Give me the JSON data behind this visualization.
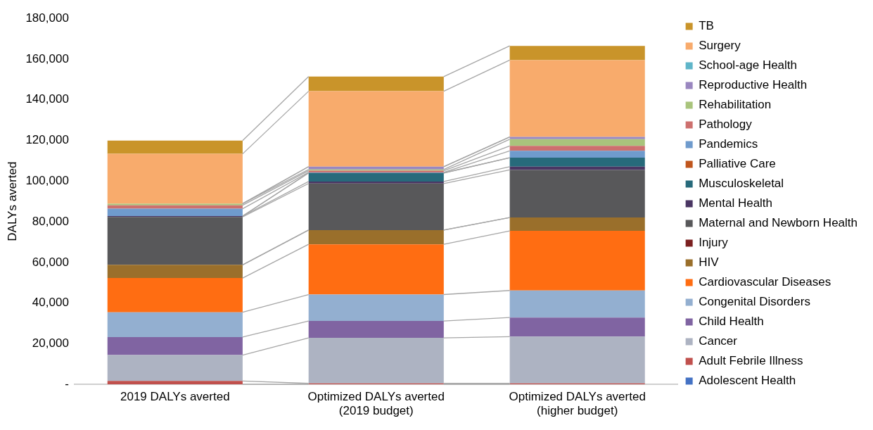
{
  "chart_data": {
    "type": "bar",
    "stacked": true,
    "ylabel": "DALYs averted",
    "categories": [
      "2019 DALYs averted",
      "Optimized DALYs averted\n(2019 budget)",
      "Optimized DALYs averted\n(higher budget)"
    ],
    "ylim": [
      0,
      180000
    ],
    "yticks": [
      {
        "value": 0,
        "label": "-"
      },
      {
        "value": 20000,
        "label": "20,000"
      },
      {
        "value": 40000,
        "label": "40,000"
      },
      {
        "value": 60000,
        "label": "60,000"
      },
      {
        "value": 80000,
        "label": "80,000"
      },
      {
        "value": 100000,
        "label": "100,000"
      },
      {
        "value": 120000,
        "label": "120,000"
      },
      {
        "value": 140000,
        "label": "140,000"
      },
      {
        "value": 160000,
        "label": "160,000"
      },
      {
        "value": 180000,
        "label": "180,000"
      }
    ],
    "grid": false,
    "legend": "right",
    "series": [
      {
        "name": "Adolescent Health",
        "color": "#4472c4",
        "values": [
          0,
          0,
          0
        ]
      },
      {
        "name": "Adult Febrile Illness",
        "color": "#c0504d",
        "values": [
          1700,
          500,
          500
        ]
      },
      {
        "name": "Cancer",
        "color": "#adb3c2",
        "values": [
          12700,
          22400,
          23000
        ]
      },
      {
        "name": "Child Health",
        "color": "#8064a2",
        "values": [
          8900,
          8300,
          9400
        ]
      },
      {
        "name": "Congenital Disorders",
        "color": "#93afd0",
        "values": [
          12200,
          13000,
          13300
        ]
      },
      {
        "name": "Cardiovascular Diseases",
        "color": "#ff6d12",
        "values": [
          16800,
          24700,
          29300
        ]
      },
      {
        "name": "HIV",
        "color": "#9a6f2b",
        "values": [
          6500,
          7000,
          6600
        ]
      },
      {
        "name": "Injury",
        "color": "#7b2020",
        "values": [
          0,
          0,
          0
        ]
      },
      {
        "name": "Maternal and Newborn Health",
        "color": "#58585a",
        "values": [
          23600,
          22900,
          23400
        ]
      },
      {
        "name": "Mental Health",
        "color": "#4a3663",
        "values": [
          400,
          1000,
          1600
        ]
      },
      {
        "name": "Musculoskeletal",
        "color": "#276a7b",
        "values": [
          0,
          4200,
          4400
        ]
      },
      {
        "name": "Palliative Care",
        "color": "#c0561d",
        "values": [
          0,
          0,
          0
        ]
      },
      {
        "name": "Pandemics",
        "color": "#6f9bcd",
        "values": [
          3600,
          300,
          3400
        ]
      },
      {
        "name": "Pathology",
        "color": "#cd706e",
        "values": [
          1700,
          800,
          2400
        ]
      },
      {
        "name": "Rehabilitation",
        "color": "#a9c47c",
        "values": [
          800,
          600,
          3300
        ]
      },
      {
        "name": "Reproductive Health",
        "color": "#9a87c0",
        "values": [
          0,
          1400,
          1100
        ]
      },
      {
        "name": "School-age Health",
        "color": "#5fb5c9",
        "values": [
          0,
          0,
          0
        ]
      },
      {
        "name": "Surgery",
        "color": "#f8ab6c",
        "values": [
          24500,
          37100,
          37800
        ]
      },
      {
        "name": "TB",
        "color": "#c9942a",
        "values": [
          6500,
          7200,
          7000
        ]
      }
    ]
  }
}
